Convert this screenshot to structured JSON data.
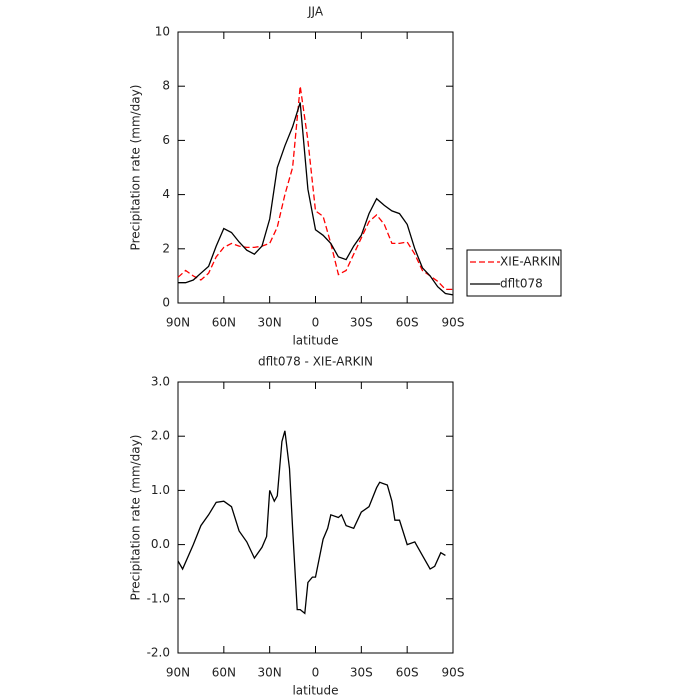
{
  "chart_data": [
    {
      "type": "line",
      "title": "JJA",
      "xlabel": "latitude",
      "ylabel": "Precipitation rate (mm/day)",
      "x": [
        90,
        85,
        80,
        75,
        70,
        65,
        60,
        55,
        50,
        45,
        40,
        35,
        30,
        25,
        20,
        15,
        10,
        5,
        0,
        -5,
        -10,
        -15,
        -20,
        -25,
        -30,
        -35,
        -40,
        -45,
        -50,
        -55,
        -60,
        -65,
        -70,
        -75,
        -80,
        -85,
        -90
      ],
      "series": [
        {
          "name": "XIE-ARKIN",
          "color": "#ff0000",
          "line_style": "dashed",
          "values": [
            0.95,
            1.2,
            1.0,
            0.85,
            1.1,
            1.7,
            2.05,
            2.2,
            2.1,
            2.05,
            2.05,
            2.1,
            2.2,
            2.8,
            4.0,
            5.0,
            8.0,
            6.0,
            3.4,
            3.2,
            2.2,
            1.05,
            1.2,
            1.8,
            2.4,
            3.0,
            3.25,
            2.9,
            2.2,
            2.2,
            2.25,
            1.8,
            1.2,
            1.0,
            0.8,
            0.5,
            0.5
          ]
        },
        {
          "name": "dflt078",
          "color": "#000000",
          "line_style": "solid",
          "values": [
            0.75,
            0.75,
            0.85,
            1.1,
            1.35,
            2.1,
            2.75,
            2.6,
            2.25,
            1.95,
            1.8,
            2.1,
            3.1,
            5.0,
            5.8,
            6.5,
            7.4,
            4.2,
            2.7,
            2.5,
            2.2,
            1.7,
            1.6,
            2.1,
            2.5,
            3.3,
            3.85,
            3.6,
            3.4,
            3.3,
            2.9,
            2.0,
            1.3,
            1.0,
            0.6,
            0.35,
            0.3
          ]
        }
      ],
      "xlim": [
        90,
        -90
      ],
      "xticks": [
        {
          "value": 90,
          "label": "90N"
        },
        {
          "value": 60,
          "label": "60N"
        },
        {
          "value": 30,
          "label": "30N"
        },
        0,
        {
          "value": -30,
          "label": "30S"
        },
        {
          "value": -60,
          "label": "60S"
        },
        {
          "value": -90,
          "label": "90S"
        }
      ],
      "ylim": [
        0,
        10
      ],
      "yticks": [
        0,
        2,
        4,
        6,
        8,
        10
      ],
      "legend": "right"
    },
    {
      "type": "line",
      "title": "dflt078 - XIE-ARKIN",
      "xlabel": "latitude",
      "ylabel": "Precipitation rate (mm/day)",
      "x": [
        90,
        87,
        80,
        75,
        70,
        65,
        60,
        55,
        50,
        45,
        40,
        35,
        32,
        30,
        27,
        25,
        22,
        20,
        17,
        15,
        12,
        10,
        7,
        5,
        2,
        0,
        -5,
        -8,
        -10,
        -15,
        -17,
        -20,
        -25,
        -30,
        -35,
        -40,
        -42,
        -47,
        -50,
        -52,
        -55,
        -60,
        -65,
        -70,
        -75,
        -78,
        -82,
        -85
      ],
      "series": [
        {
          "name": "dflt078 - XIE-ARKIN",
          "color": "#000000",
          "line_style": "solid",
          "values": [
            -0.3,
            -0.45,
            0.0,
            0.35,
            0.55,
            0.78,
            0.8,
            0.7,
            0.25,
            0.05,
            -0.25,
            -0.05,
            0.15,
            1.0,
            0.8,
            0.9,
            1.9,
            2.1,
            1.4,
            0.3,
            -1.2,
            -1.2,
            -1.27,
            -0.7,
            -0.6,
            -0.6,
            0.1,
            0.3,
            0.55,
            0.5,
            0.55,
            0.35,
            0.3,
            0.6,
            0.7,
            1.05,
            1.15,
            1.1,
            0.8,
            0.45,
            0.45,
            0.0,
            0.05,
            -0.2,
            -0.45,
            -0.4,
            -0.15,
            -0.2
          ]
        }
      ],
      "xlim": [
        90,
        -90
      ],
      "xticks": [
        {
          "value": 90,
          "label": "90N"
        },
        {
          "value": 60,
          "label": "60N"
        },
        {
          "value": 30,
          "label": "30N"
        },
        0,
        {
          "value": -30,
          "label": "30S"
        },
        {
          "value": -60,
          "label": "60S"
        },
        {
          "value": -90,
          "label": "90S"
        }
      ],
      "ylim": [
        -2,
        3
      ],
      "yticks": [
        {
          "value": -2,
          "label": "-2.0"
        },
        {
          "value": -1,
          "label": "-1.0"
        },
        {
          "value": 0,
          "label": "0.0"
        },
        {
          "value": 1,
          "label": "1.0"
        },
        {
          "value": 2,
          "label": "2.0"
        },
        {
          "value": 3,
          "label": "3.0"
        }
      ]
    }
  ]
}
